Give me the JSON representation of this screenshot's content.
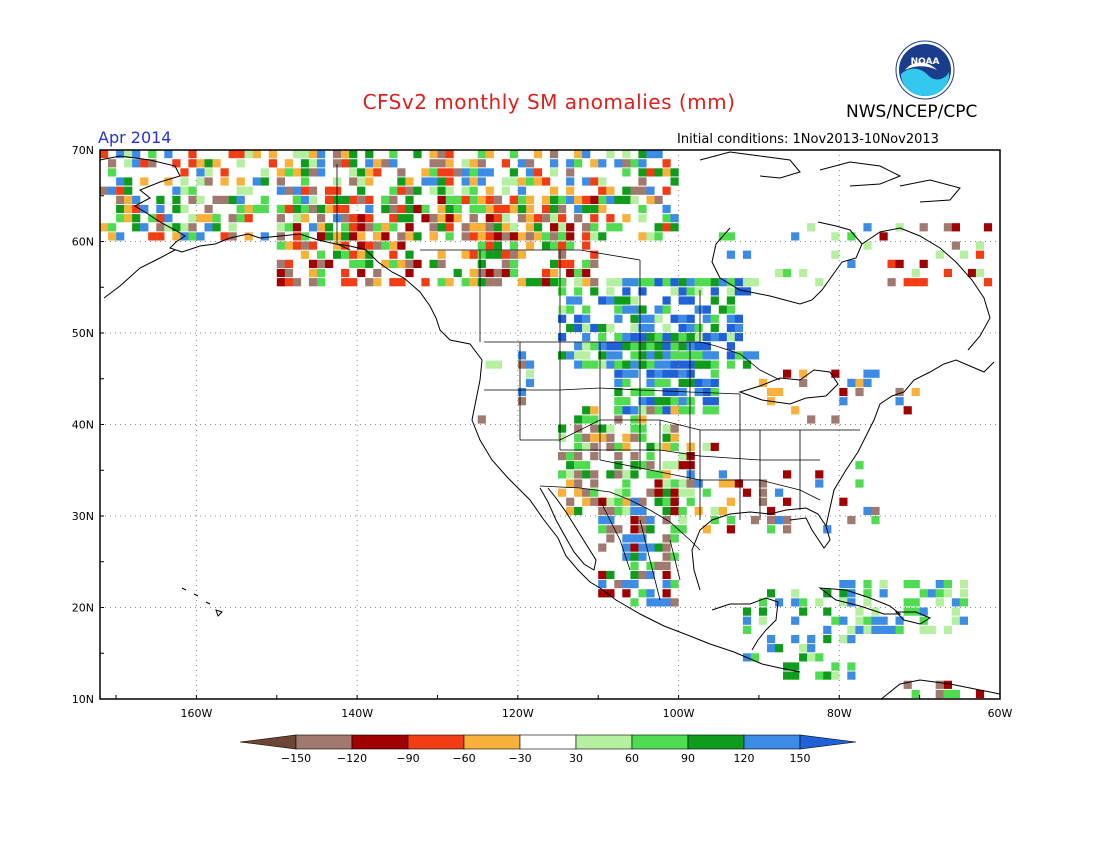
{
  "header": {
    "title": "CFSv2 monthly SM anomalies (mm)",
    "agency": "NWS/NCEP/CPC",
    "valid_month": "Apr 2014",
    "initial_conditions": "Initial conditions: 1Nov2013-10Nov2013",
    "logo_text": "NOAA"
  },
  "map": {
    "lat_labels": [
      "70N",
      "60N",
      "50N",
      "40N",
      "30N",
      "20N",
      "10N"
    ],
    "lon_labels": [
      "160W",
      "140W",
      "120W",
      "100W",
      "80W",
      "60W"
    ],
    "lon_range": [
      -172,
      -60
    ],
    "lat_range": [
      10,
      70
    ]
  },
  "legend": {
    "labels": [
      "-150",
      "-120",
      "-90",
      "-60",
      "-30",
      "30",
      "60",
      "90",
      "120",
      "150"
    ],
    "colors": [
      "#6b4535",
      "#a07a6e",
      "#a00000",
      "#f23c14",
      "#f8b23c",
      "#ffffff",
      "#b4f0a0",
      "#50dc50",
      "#0f9b1c",
      "#3c8ce6",
      "#2060d8"
    ]
  },
  "colors": {
    "title": "#e0201c",
    "month": "#2333d8",
    "coast": "#000000",
    "grid": "#888888"
  }
}
